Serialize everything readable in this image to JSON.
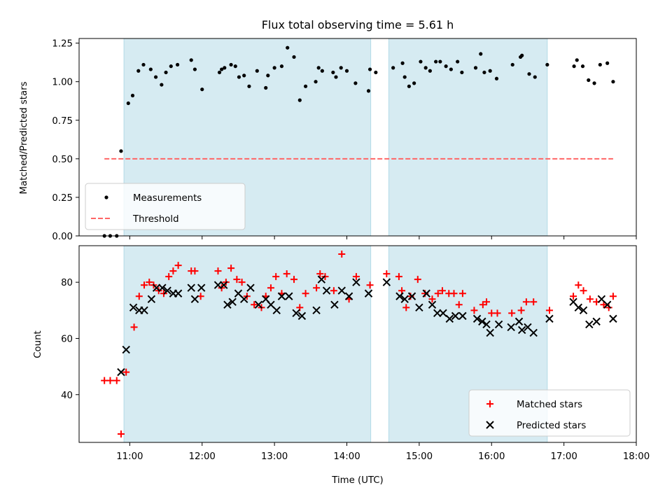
{
  "chart_data": [
    {
      "type": "scatter",
      "title": "Flux total observing time = 5.61 h",
      "ylabel": "Matched/Predicted stars",
      "xlabel": "",
      "xlim": [
        10.3,
        18.0
      ],
      "ylim": [
        0.0,
        1.28
      ],
      "x_ticks": [
        11,
        12,
        13,
        14,
        15,
        16,
        17,
        18
      ],
      "x_tick_labels": [
        "",
        "",
        "",
        "",
        "",
        "",
        "",
        ""
      ],
      "y_ticks": [
        0.0,
        0.25,
        0.5,
        0.75,
        1.0,
        1.25
      ],
      "y_tick_labels": [
        "0.00",
        "0.25",
        "0.50",
        "0.75",
        "1.00",
        "1.25"
      ],
      "grid": false,
      "legend": {
        "placement": "lower-left",
        "entries": [
          "Measurements",
          "Threshold"
        ]
      },
      "shaded_spans": [
        [
          10.92,
          14.33
        ],
        [
          14.58,
          16.77
        ]
      ],
      "series": [
        {
          "name": "Measurements",
          "color": "#000000",
          "marker": "dot",
          "x": [
            10.65,
            10.73,
            10.82,
            10.88,
            10.98,
            11.04,
            11.12,
            11.19,
            11.29,
            11.36,
            11.44,
            11.5,
            11.57,
            11.66,
            11.85,
            11.9,
            12.0,
            12.24,
            12.27,
            12.31,
            12.4,
            12.46,
            12.51,
            12.58,
            12.65,
            12.76,
            12.88,
            12.91,
            13.0,
            13.1,
            13.18,
            13.27,
            13.35,
            13.43,
            13.57,
            13.61,
            13.66,
            13.81,
            13.85,
            13.92,
            14.0,
            14.12,
            14.3,
            14.32,
            14.4,
            14.64,
            14.77,
            14.8,
            14.86,
            14.93,
            15.02,
            15.09,
            15.15,
            15.23,
            15.29,
            15.37,
            15.44,
            15.53,
            15.59,
            15.78,
            15.85,
            15.9,
            15.98,
            16.07,
            16.29,
            16.4,
            16.42,
            16.52,
            16.6,
            16.77,
            17.14,
            17.18,
            17.26,
            17.34,
            17.42,
            17.5,
            17.6,
            17.68
          ],
          "y": [
            0.0,
            0.0,
            0.0,
            0.55,
            0.86,
            0.91,
            1.07,
            1.11,
            1.08,
            1.03,
            0.98,
            1.06,
            1.1,
            1.11,
            1.14,
            1.08,
            0.95,
            1.06,
            1.08,
            1.09,
            1.11,
            1.1,
            1.03,
            1.04,
            0.97,
            1.07,
            0.96,
            1.04,
            1.09,
            1.1,
            1.22,
            1.16,
            0.88,
            0.97,
            1.0,
            1.09,
            1.07,
            1.06,
            1.03,
            1.09,
            1.07,
            0.99,
            0.94,
            1.08,
            1.06,
            1.09,
            1.12,
            1.03,
            0.97,
            0.99,
            1.13,
            1.09,
            1.07,
            1.13,
            1.13,
            1.1,
            1.08,
            1.13,
            1.06,
            1.09,
            1.18,
            1.06,
            1.07,
            1.02,
            1.11,
            1.16,
            1.17,
            1.05,
            1.03,
            1.11,
            1.1,
            1.14,
            1.1,
            1.01,
            0.99,
            1.11,
            1.12,
            1.0
          ]
        },
        {
          "name": "Threshold",
          "color": "#ff6666",
          "line_style": "dashed",
          "x": [
            10.65,
            17.68
          ],
          "y": [
            0.5,
            0.5
          ]
        }
      ]
    },
    {
      "type": "scatter",
      "title": "",
      "ylabel": "Count",
      "xlabel": "Time (UTC)",
      "xlim": [
        10.3,
        18.0
      ],
      "ylim": [
        23,
        93
      ],
      "x_ticks": [
        11,
        12,
        13,
        14,
        15,
        16,
        17,
        18
      ],
      "x_tick_labels": [
        "11:00",
        "12:00",
        "13:00",
        "14:00",
        "15:00",
        "16:00",
        "17:00",
        "18:00"
      ],
      "y_ticks": [
        40,
        60,
        80
      ],
      "y_tick_labels": [
        "40",
        "60",
        "80"
      ],
      "grid": false,
      "legend": {
        "placement": "lower-right",
        "entries": [
          "Matched stars",
          "Predicted stars"
        ]
      },
      "shaded_spans": [
        [
          10.92,
          14.33
        ],
        [
          14.58,
          16.77
        ]
      ],
      "series": [
        {
          "name": "Matched stars",
          "color": "#ff0000",
          "marker": "plus",
          "x": [
            10.65,
            10.73,
            10.82,
            10.88,
            10.95,
            11.06,
            11.13,
            11.2,
            11.27,
            11.33,
            11.4,
            11.47,
            11.54,
            11.6,
            11.67,
            11.85,
            11.9,
            11.98,
            12.22,
            12.27,
            12.33,
            12.4,
            12.48,
            12.55,
            12.62,
            12.72,
            12.82,
            12.88,
            12.95,
            13.02,
            13.1,
            13.17,
            13.27,
            13.35,
            13.43,
            13.58,
            13.63,
            13.7,
            13.82,
            13.93,
            14.03,
            14.13,
            14.32,
            14.55,
            14.72,
            14.76,
            14.82,
            14.88,
            14.98,
            15.08,
            15.18,
            15.26,
            15.32,
            15.41,
            15.48,
            15.55,
            15.6,
            15.76,
            15.88,
            15.93,
            16.0,
            16.08,
            16.28,
            16.41,
            16.48,
            16.58,
            16.8,
            17.13,
            17.2,
            17.27,
            17.36,
            17.45,
            17.55,
            17.62,
            17.68
          ],
          "y": [
            45,
            45,
            45,
            26,
            48,
            64,
            75,
            79,
            80,
            79,
            77,
            76,
            82,
            84,
            86,
            84,
            84,
            75,
            84,
            78,
            80,
            85,
            81,
            80,
            75,
            72,
            71,
            75,
            78,
            82,
            76,
            83,
            81,
            71,
            76,
            78,
            83,
            82,
            77,
            90,
            74,
            82,
            79,
            83,
            82,
            77,
            71,
            75,
            81,
            76,
            74,
            76,
            77,
            76,
            76,
            72,
            76,
            70,
            72,
            73,
            69,
            69,
            69,
            70,
            73,
            73,
            70,
            75,
            79,
            77,
            74,
            73,
            72,
            71,
            75
          ]
        },
        {
          "name": "Predicted stars",
          "color": "#000000",
          "marker": "x",
          "x": [
            10.88,
            10.95,
            11.05,
            11.13,
            11.2,
            11.3,
            11.37,
            11.45,
            11.52,
            11.6,
            11.67,
            11.85,
            11.9,
            11.99,
            12.22,
            12.3,
            12.35,
            12.42,
            12.5,
            12.58,
            12.67,
            12.78,
            12.88,
            12.95,
            13.03,
            13.1,
            13.2,
            13.3,
            13.38,
            13.58,
            13.65,
            13.72,
            13.83,
            13.93,
            14.03,
            14.13,
            14.3,
            14.55,
            14.73,
            14.8,
            14.9,
            15.0,
            15.1,
            15.18,
            15.25,
            15.33,
            15.42,
            15.5,
            15.6,
            15.8,
            15.87,
            15.93,
            15.98,
            16.1,
            16.27,
            16.38,
            16.42,
            16.5,
            16.58,
            16.8,
            17.13,
            17.2,
            17.27,
            17.35,
            17.45,
            17.52,
            17.6,
            17.68
          ],
          "y": [
            48,
            56,
            71,
            70,
            70,
            74,
            78,
            78,
            77,
            76,
            76,
            78,
            74,
            78,
            79,
            79,
            72,
            73,
            76,
            74,
            78,
            72,
            74,
            72,
            70,
            75,
            75,
            69,
            68,
            70,
            81,
            77,
            72,
            77,
            75,
            80,
            76,
            80,
            75,
            74,
            75,
            71,
            76,
            72,
            69,
            69,
            67,
            68,
            68,
            67,
            66,
            65,
            62,
            65,
            64,
            66,
            63,
            64,
            62,
            67,
            73,
            71,
            70,
            65,
            66,
            74,
            72,
            67
          ]
        }
      ]
    }
  ],
  "colors": {
    "shade": "#add8e6",
    "shade_alpha": 0.5
  }
}
